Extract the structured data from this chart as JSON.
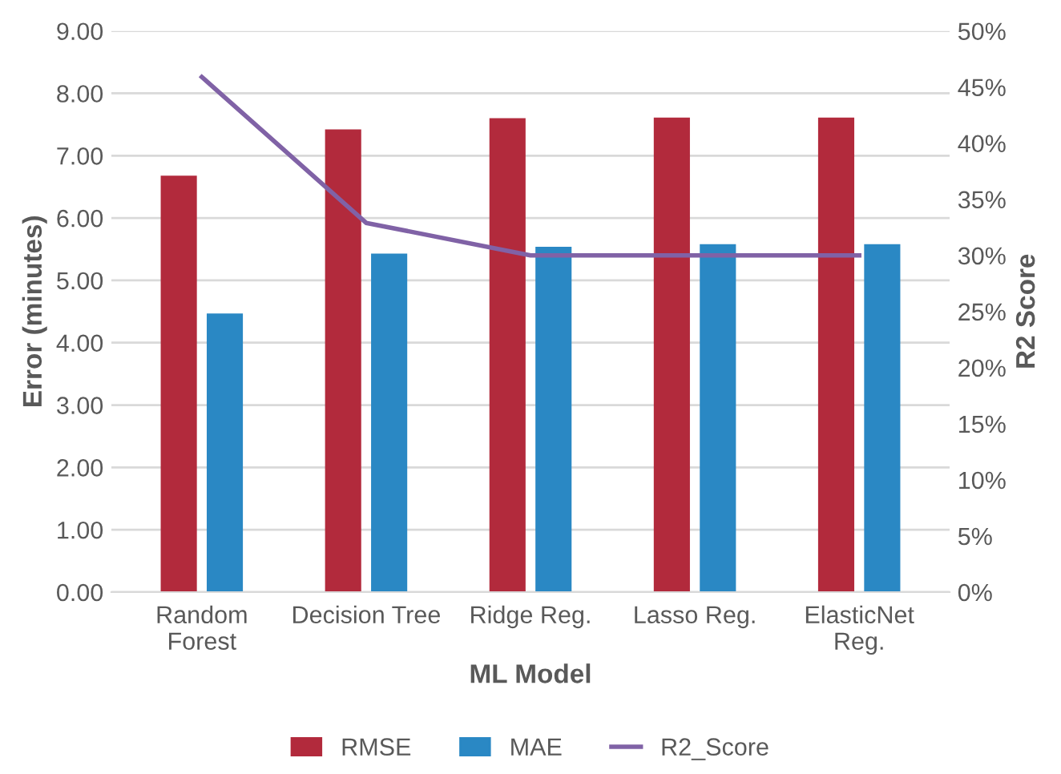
{
  "chart_data": {
    "type": "bar",
    "xlabel": "ML Model",
    "ylabel": "Error (minutes)",
    "y2label": "R2 Score",
    "categories": [
      "Random\nForest",
      "Decision Tree",
      "Ridge Reg.",
      "Lasso Reg.",
      "ElasticNet\nReg."
    ],
    "series": [
      {
        "name": "RMSE",
        "color": "#b22a3c",
        "values": [
          6.68,
          7.42,
          7.6,
          7.61,
          7.61
        ]
      },
      {
        "name": "MAE",
        "color": "#2a88c4",
        "values": [
          4.47,
          5.43,
          5.54,
          5.58,
          5.58
        ]
      },
      {
        "name": "R2_Score",
        "color": "#8062a6",
        "type": "line",
        "axis": "y2",
        "values": [
          45.9,
          32.9,
          30.0,
          30.0,
          30.0
        ]
      }
    ],
    "ylim": [
      0,
      9
    ],
    "yticks": [
      {
        "value": 0,
        "label": "0.00"
      },
      {
        "value": 1,
        "label": "1.00"
      },
      {
        "value": 2,
        "label": "2.00"
      },
      {
        "value": 3,
        "label": "3.00"
      },
      {
        "value": 4,
        "label": "4.00"
      },
      {
        "value": 5,
        "label": "5.00"
      },
      {
        "value": 6,
        "label": "6.00"
      },
      {
        "value": 7,
        "label": "7.00"
      },
      {
        "value": 8,
        "label": "8.00"
      },
      {
        "value": 9,
        "label": "9.00"
      }
    ],
    "y2lim": [
      0,
      50
    ],
    "y2ticks": [
      {
        "value": 0,
        "label": "0%"
      },
      {
        "value": 5,
        "label": "5%"
      },
      {
        "value": 10,
        "label": "10%"
      },
      {
        "value": 15,
        "label": "15%"
      },
      {
        "value": 20,
        "label": "20%"
      },
      {
        "value": 25,
        "label": "25%"
      },
      {
        "value": 30,
        "label": "30%"
      },
      {
        "value": 35,
        "label": "35%"
      },
      {
        "value": 40,
        "label": "40%"
      },
      {
        "value": 45,
        "label": "45%"
      },
      {
        "value": 50,
        "label": "50%"
      }
    ],
    "grid": "y",
    "legend": "bottom",
    "marker": "none"
  }
}
